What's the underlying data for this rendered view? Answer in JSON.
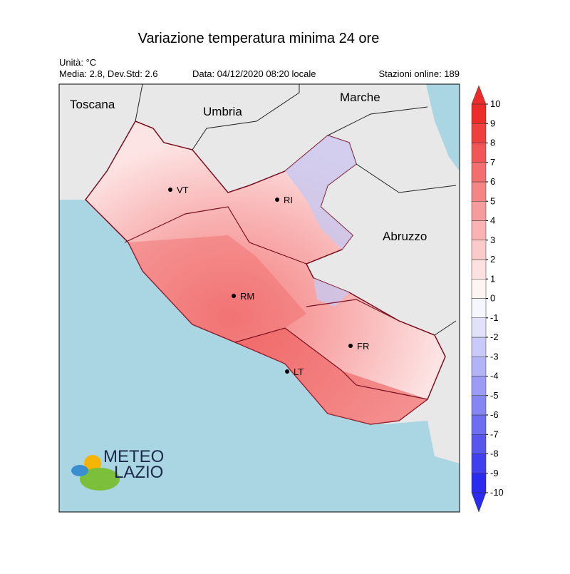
{
  "header": {
    "title": "Variazione temperatura minima 24 ore",
    "unit": "Unità: °C",
    "stats": "Media: 2.8, Dev.Std: 2.6",
    "date": "Data: 04/12/2020 08:20 locale",
    "stations": "Stazioni online: 189"
  },
  "regions": [
    "Toscana",
    "Umbria",
    "Marche",
    "Abruzzo"
  ],
  "cities": [
    "VT",
    "RI",
    "RM",
    "FR",
    "LT"
  ],
  "logo": {
    "line1": "METEO",
    "line2": "LAZIO"
  },
  "colorbar": {
    "range": [
      -10,
      10
    ],
    "ticks": [
      10,
      9,
      8,
      7,
      6,
      5,
      4,
      3,
      2,
      1,
      0,
      -1,
      -2,
      -3,
      -4,
      -5,
      -6,
      -7,
      -8,
      -9,
      -10
    ],
    "colors": [
      "#2b2bf0",
      "#4040f0",
      "#5757f0",
      "#6e6ef2",
      "#8585f4",
      "#9c9cf6",
      "#b3b3f8",
      "#cacafa",
      "#e1e1fc",
      "#f6f6ff",
      "#fff4f4",
      "#fde0e0",
      "#fbcaca",
      "#f9b3b3",
      "#f79c9c",
      "#f58585",
      "#f36e6e",
      "#f15757",
      "#ef4040",
      "#ed2b2b"
    ]
  }
}
